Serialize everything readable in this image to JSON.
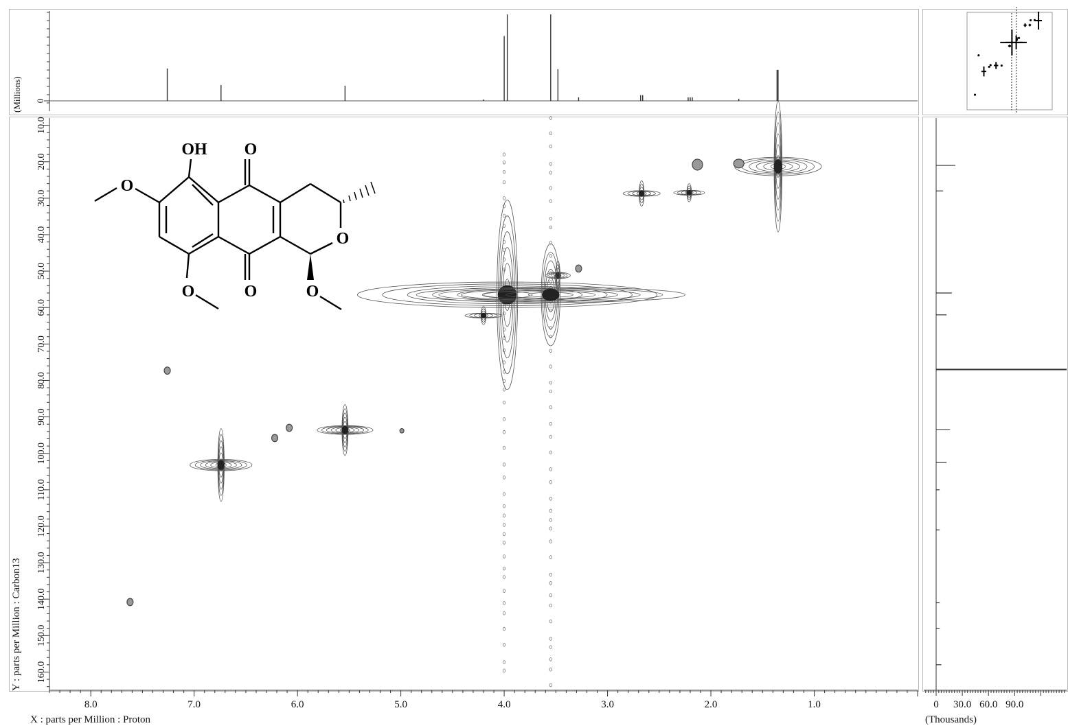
{
  "chart_data": {
    "type": "heatmap",
    "x_axis": {
      "label": "X : parts per Million : Proton",
      "ticks": [
        "8.0",
        "7.0",
        "6.0",
        "5.0",
        "4.0",
        "3.0",
        "2.0",
        "1.0"
      ],
      "tick_values": [
        8.0,
        7.0,
        6.0,
        5.0,
        4.0,
        3.0,
        2.0,
        1.0
      ],
      "range": [
        8.4,
        0.0
      ]
    },
    "y_axis": {
      "label": "Y : parts per Million : Carbon13",
      "ticks": [
        "10.0",
        "20.0",
        "30.0",
        "40.0",
        "50.0",
        "60.0",
        "70.0",
        "80.0",
        "90.0",
        "100.0",
        "110.0",
        "120.0",
        "130.0",
        "140.0",
        "150.0",
        "160.0"
      ],
      "tick_values": [
        10,
        20,
        30,
        40,
        50,
        60,
        70,
        80,
        90,
        100,
        110,
        120,
        130,
        140,
        150,
        160
      ],
      "range": [
        8,
        165
      ]
    },
    "top_projection": {
      "ylabel": "(Millions)",
      "tick_label": "0",
      "peaks": [
        {
          "x": 7.26,
          "h": 0.45
        },
        {
          "x": 6.74,
          "h": 0.22
        },
        {
          "x": 5.54,
          "h": 0.21
        },
        {
          "x": 4.2,
          "h": 0.02
        },
        {
          "x": 4.0,
          "h": 0.9
        },
        {
          "x": 3.97,
          "h": 1.2
        },
        {
          "x": 3.55,
          "h": 1.2
        },
        {
          "x": 3.48,
          "h": 0.44
        },
        {
          "x": 3.28,
          "h": 0.05
        },
        {
          "x": 2.68,
          "h": 0.08
        },
        {
          "x": 2.66,
          "h": 0.08
        },
        {
          "x": 2.22,
          "h": 0.05
        },
        {
          "x": 2.2,
          "h": 0.05
        },
        {
          "x": 2.18,
          "h": 0.05
        },
        {
          "x": 1.73,
          "h": 0.03
        },
        {
          "x": 1.36,
          "h": 0.43
        },
        {
          "x": 1.35,
          "h": 0.43
        }
      ]
    },
    "right_projection": {
      "xlabel": "(Thousands)",
      "ticks": [
        "0",
        "30.0",
        "60.0",
        "90.0"
      ],
      "tick_values": [
        0,
        30,
        60,
        90
      ],
      "peaks": [
        {
          "y": 21,
          "w": 22
        },
        {
          "y": 28,
          "w": 8
        },
        {
          "y": 56,
          "w": 18
        },
        {
          "y": 62,
          "w": 12
        },
        {
          "y": 77,
          "w": 190
        },
        {
          "y": 93.5,
          "w": 16
        },
        {
          "y": 102.5,
          "w": 12
        },
        {
          "y": 110,
          "w": 4
        },
        {
          "y": 121,
          "w": 4
        },
        {
          "y": 141,
          "w": 4
        },
        {
          "y": 148,
          "w": 4
        },
        {
          "y": 158,
          "w": 6
        }
      ]
    },
    "crosspeaks": [
      {
        "x": 1.35,
        "y": 21.3,
        "sx": 0.42,
        "sy": 18,
        "strength": "strong"
      },
      {
        "x": 2.13,
        "y": 20.8,
        "sx": 0.05,
        "sy": 1.5,
        "strength": "weak"
      },
      {
        "x": 1.73,
        "y": 20.5,
        "sx": 0.05,
        "sy": 1.2,
        "strength": "weak"
      },
      {
        "x": 2.67,
        "y": 28.7,
        "sx": 0.18,
        "sy": 3.5,
        "strength": "medium"
      },
      {
        "x": 2.21,
        "y": 28.5,
        "sx": 0.15,
        "sy": 2.5,
        "strength": "medium"
      },
      {
        "x": 3.48,
        "y": 51.2,
        "sx": 0.12,
        "sy": 4,
        "strength": "medium"
      },
      {
        "x": 3.28,
        "y": 49.3,
        "sx": 0.03,
        "sy": 1,
        "strength": "weak"
      },
      {
        "x": 3.97,
        "y": 56.5,
        "sx": 1.45,
        "sy": 26,
        "strength": "strong"
      },
      {
        "x": 3.55,
        "y": 56.5,
        "sx": 1.3,
        "sy": 14,
        "strength": "strong"
      },
      {
        "x": 4.2,
        "y": 62.2,
        "sx": 0.18,
        "sy": 2.5,
        "strength": "medium"
      },
      {
        "x": 7.26,
        "y": 77.3,
        "sx": 0.03,
        "sy": 1,
        "strength": "weak"
      },
      {
        "x": 5.54,
        "y": 93.6,
        "sx": 0.27,
        "sy": 7,
        "strength": "strong"
      },
      {
        "x": 6.08,
        "y": 93.0,
        "sx": 0.03,
        "sy": 1,
        "strength": "weak"
      },
      {
        "x": 6.22,
        "y": 95.8,
        "sx": 0.03,
        "sy": 1,
        "strength": "weak"
      },
      {
        "x": 4.99,
        "y": 93.8,
        "sx": 0.02,
        "sy": 0.6,
        "strength": "weak"
      },
      {
        "x": 6.74,
        "y": 103.2,
        "sx": 0.3,
        "sy": 10,
        "strength": "strong"
      },
      {
        "x": 7.62,
        "y": 140.8,
        "sx": 0.03,
        "sy": 1,
        "strength": "weak"
      }
    ],
    "noise_streaks": [
      {
        "x": 3.55,
        "y_from": 8,
        "y_to": 165
      },
      {
        "x": 4.0,
        "y_from": 18,
        "y_to": 160
      }
    ]
  },
  "molecule": {
    "atoms": [
      "OH",
      "O",
      "O",
      "O",
      "O",
      "O",
      "O"
    ]
  }
}
